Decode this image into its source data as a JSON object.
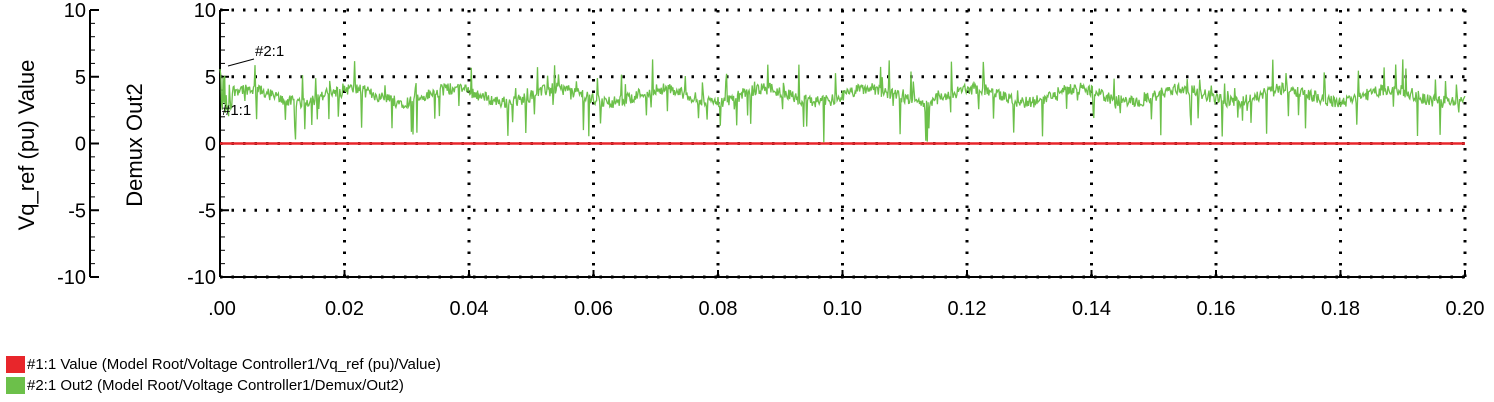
{
  "chart_data": {
    "type": "line",
    "left_axis": {
      "label": "Vq_ref (pu) Value",
      "ticks": [
        "10",
        "5",
        "0",
        "-5",
        "-10"
      ],
      "ylim": [
        -10,
        10
      ]
    },
    "right_axis": {
      "label": "Demux Out2",
      "ticks": [
        "10",
        "5",
        "0",
        "-5",
        "-10"
      ],
      "ylim": [
        -10,
        10
      ]
    },
    "x_ticks": [
      ".00",
      "0.02",
      "0.04",
      "0.06",
      "0.08",
      "0.10",
      "0.12",
      "0.14",
      "0.16",
      "0.18",
      "0.20"
    ],
    "xlim": [
      0,
      0.2
    ],
    "grid": "dotted",
    "series": [
      {
        "tag": "#1:1",
        "color": "#e8262b",
        "constant": 0
      },
      {
        "tag": "#2:1",
        "color": "#6cc04a",
        "base": 3.6,
        "spread": 0.9,
        "spikes": 2.4
      }
    ],
    "legend": [
      {
        "color": "#e8262b",
        "text": "#1:1 Value (Model Root/Voltage Controller1/Vq_ref (pu)/Value)"
      },
      {
        "color": "#6cc04a",
        "text": "#2:1 Out2 (Model Root/Voltage Controller1/Demux/Out2)"
      }
    ]
  }
}
